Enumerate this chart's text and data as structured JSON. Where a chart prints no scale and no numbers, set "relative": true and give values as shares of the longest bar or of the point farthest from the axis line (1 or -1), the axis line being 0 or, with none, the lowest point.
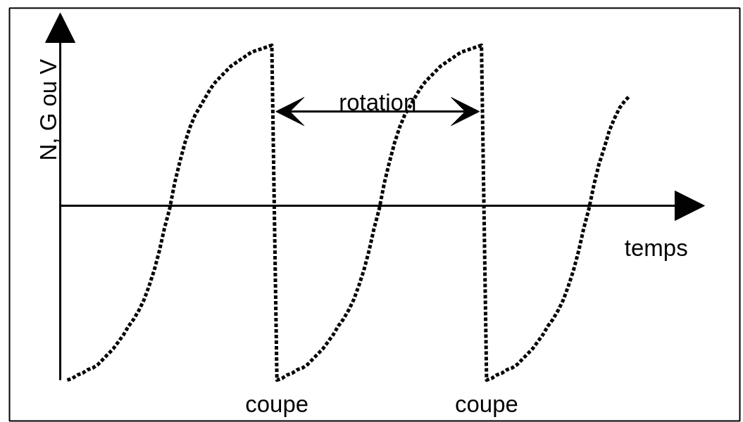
{
  "chart_data": {
    "type": "line",
    "relative": true,
    "ylabel": "N, G ou V",
    "xlabel": "temps",
    "line_style": "dotted",
    "categories": [
      null,
      null,
      null,
      null,
      null,
      null,
      null,
      null,
      null,
      null,
      null,
      null,
      null,
      null,
      null,
      null,
      null,
      null,
      null,
      null,
      null,
      null,
      null,
      null,
      null,
      null,
      null,
      null,
      null,
      null,
      null,
      null,
      null,
      null,
      null,
      null,
      null,
      null,
      null,
      null,
      null,
      null,
      null,
      null,
      null,
      null,
      null,
      null,
      null,
      null,
      null,
      null,
      null,
      null,
      null,
      null,
      null,
      null,
      null,
      null,
      null,
      null,
      null,
      null,
      null,
      null,
      null,
      null,
      null,
      null,
      null,
      null,
      null,
      null,
      null,
      null,
      null,
      null,
      null,
      null,
      null,
      null,
      null,
      null,
      null,
      null,
      null,
      null,
      null,
      null,
      null,
      null,
      null,
      null,
      null,
      null,
      null,
      null,
      null,
      null,
      null,
      null,
      null,
      null,
      null,
      null,
      null,
      null,
      null,
      null,
      null
    ],
    "series": [
      {
        "color": "#000000",
        "values": [
          -1,
          -0.99,
          -0.97,
          -0.96,
          -0.94,
          -0.93,
          -0.91,
          -0.88,
          -0.85,
          -0.82,
          -0.78,
          -0.74,
          -0.69,
          -0.65,
          -0.6,
          -0.54,
          -0.46,
          -0.37,
          -0.26,
          -0.13,
          -0.02,
          0.13,
          0.25,
          0.36,
          0.45,
          0.52,
          0.57,
          0.62,
          0.67,
          0.71,
          0.74,
          0.77,
          0.8,
          0.82,
          0.84,
          0.86,
          0.88,
          0.89,
          0.9,
          0.91,
          0.92,
          -1,
          -0.99,
          -0.97,
          -0.96,
          -0.94,
          -0.93,
          -0.91,
          -0.88,
          -0.85,
          -0.82,
          -0.78,
          -0.74,
          -0.69,
          -0.65,
          -0.6,
          -0.54,
          -0.46,
          -0.37,
          -0.26,
          -0.13,
          -0.02,
          0.13,
          0.25,
          0.36,
          0.45,
          0.52,
          0.57,
          0.62,
          0.67,
          0.71,
          0.74,
          0.77,
          0.8,
          0.82,
          0.84,
          0.86,
          0.88,
          0.89,
          0.9,
          0.91,
          0.92,
          -1,
          -0.99,
          -0.97,
          -0.96,
          -0.94,
          -0.93,
          -0.91,
          -0.88,
          -0.85,
          -0.82,
          -0.78,
          -0.74,
          -0.69,
          -0.65,
          -0.6,
          -0.54,
          -0.46,
          -0.37,
          -0.26,
          -0.13,
          -0.02,
          0.12,
          0.24,
          0.33,
          0.43,
          0.5,
          0.56,
          0.6,
          0.63
        ]
      }
    ],
    "annotations": [
      "rotation",
      {
        "text": "coupe",
        "y": -1
      },
      {
        "text": "coupe",
        "y": -1
      }
    ]
  }
}
